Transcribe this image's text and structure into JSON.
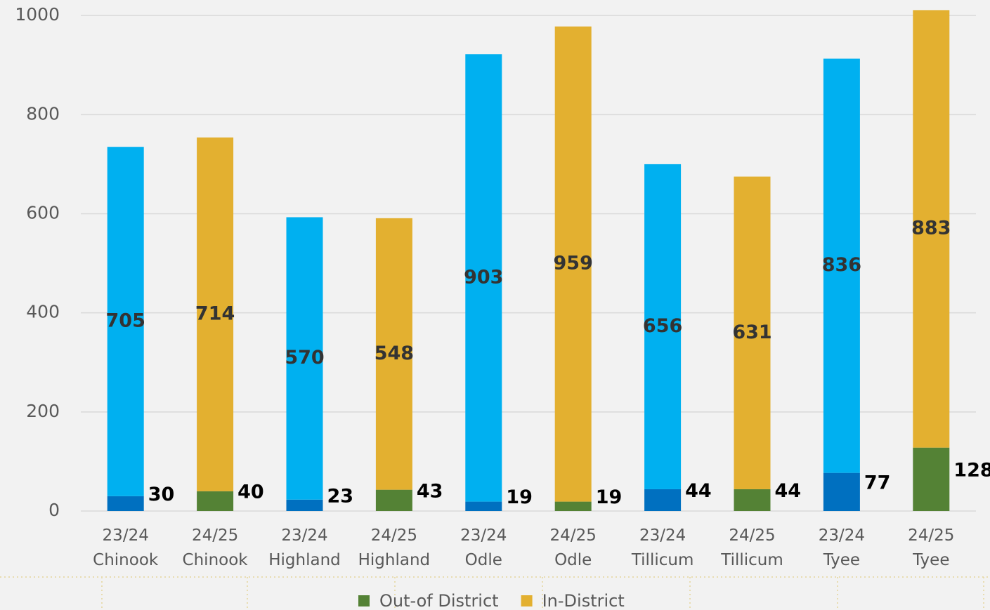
{
  "chart_data": {
    "type": "stacked_bar",
    "categories": [
      "23/24 Chinook",
      "24/25 Chinook",
      "23/24 Highland",
      "24/25 Highland",
      "23/24 Odle",
      "24/25 Odle",
      "23/24 Tillicum",
      "24/25 Tillicum",
      "23/24 Tyee",
      "24/25 Tyee"
    ],
    "series": [
      {
        "name": "Out-of District",
        "color": "#548235",
        "colors": [
          "#0070c0",
          "#548235",
          "#0070c0",
          "#548235",
          "#0070c0",
          "#548235",
          "#0070c0",
          "#548235",
          "#0070c0",
          "#548235"
        ],
        "values": [
          30,
          40,
          23,
          43,
          19,
          19,
          44,
          44,
          77,
          128
        ]
      },
      {
        "name": "In-District",
        "color": "#e3b030",
        "colors": [
          "#00b0f0",
          "#e3b030",
          "#00b0f0",
          "#e3b030",
          "#00b0f0",
          "#e3b030",
          "#00b0f0",
          "#e3b030",
          "#00b0f0",
          "#e3b030"
        ],
        "values": [
          705,
          714,
          570,
          548,
          903,
          959,
          656,
          631,
          836,
          883
        ]
      }
    ],
    "ylim": [
      0,
      1030
    ],
    "yticks": [
      0,
      200,
      400,
      600,
      800,
      1000
    ],
    "grid": true,
    "legend": "bottom"
  }
}
